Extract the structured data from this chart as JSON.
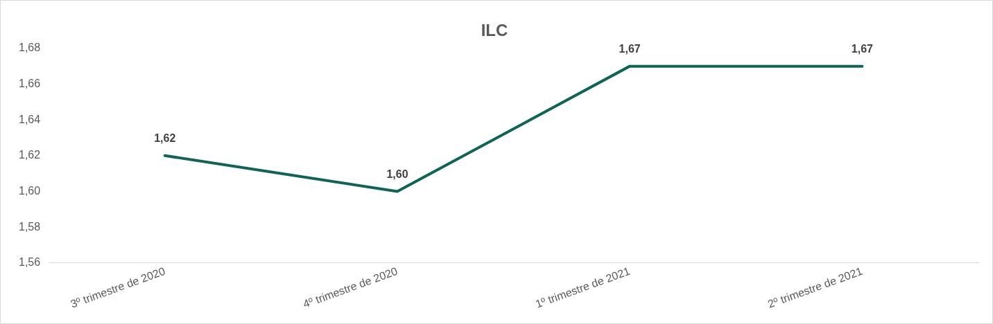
{
  "chart_data": {
    "type": "line",
    "title": "ILC",
    "categories": [
      "3º trimestre de 2020",
      "4º trimestre de 2020",
      "1º trimestre de 2021",
      "2º trimestre de 2021"
    ],
    "series": [
      {
        "color": "#0e6455",
        "values": [
          1.62,
          1.6,
          1.67,
          1.67
        ],
        "value_labels": [
          "1,62",
          "1,60",
          "1,67",
          "1,67"
        ]
      }
    ],
    "ylim": [
      1.56,
      1.68
    ],
    "yticks": [
      {
        "value": 1.56,
        "label": "1,56"
      },
      {
        "value": 1.58,
        "label": "1,58"
      },
      {
        "value": 1.6,
        "label": "1,60"
      },
      {
        "value": 1.62,
        "label": "1,62"
      },
      {
        "value": 1.64,
        "label": "1,64"
      },
      {
        "value": 1.66,
        "label": "1,66"
      },
      {
        "value": 1.68,
        "label": "1,68"
      }
    ],
    "grid": false,
    "legend": false,
    "marker": "none",
    "line_style": "solid"
  }
}
